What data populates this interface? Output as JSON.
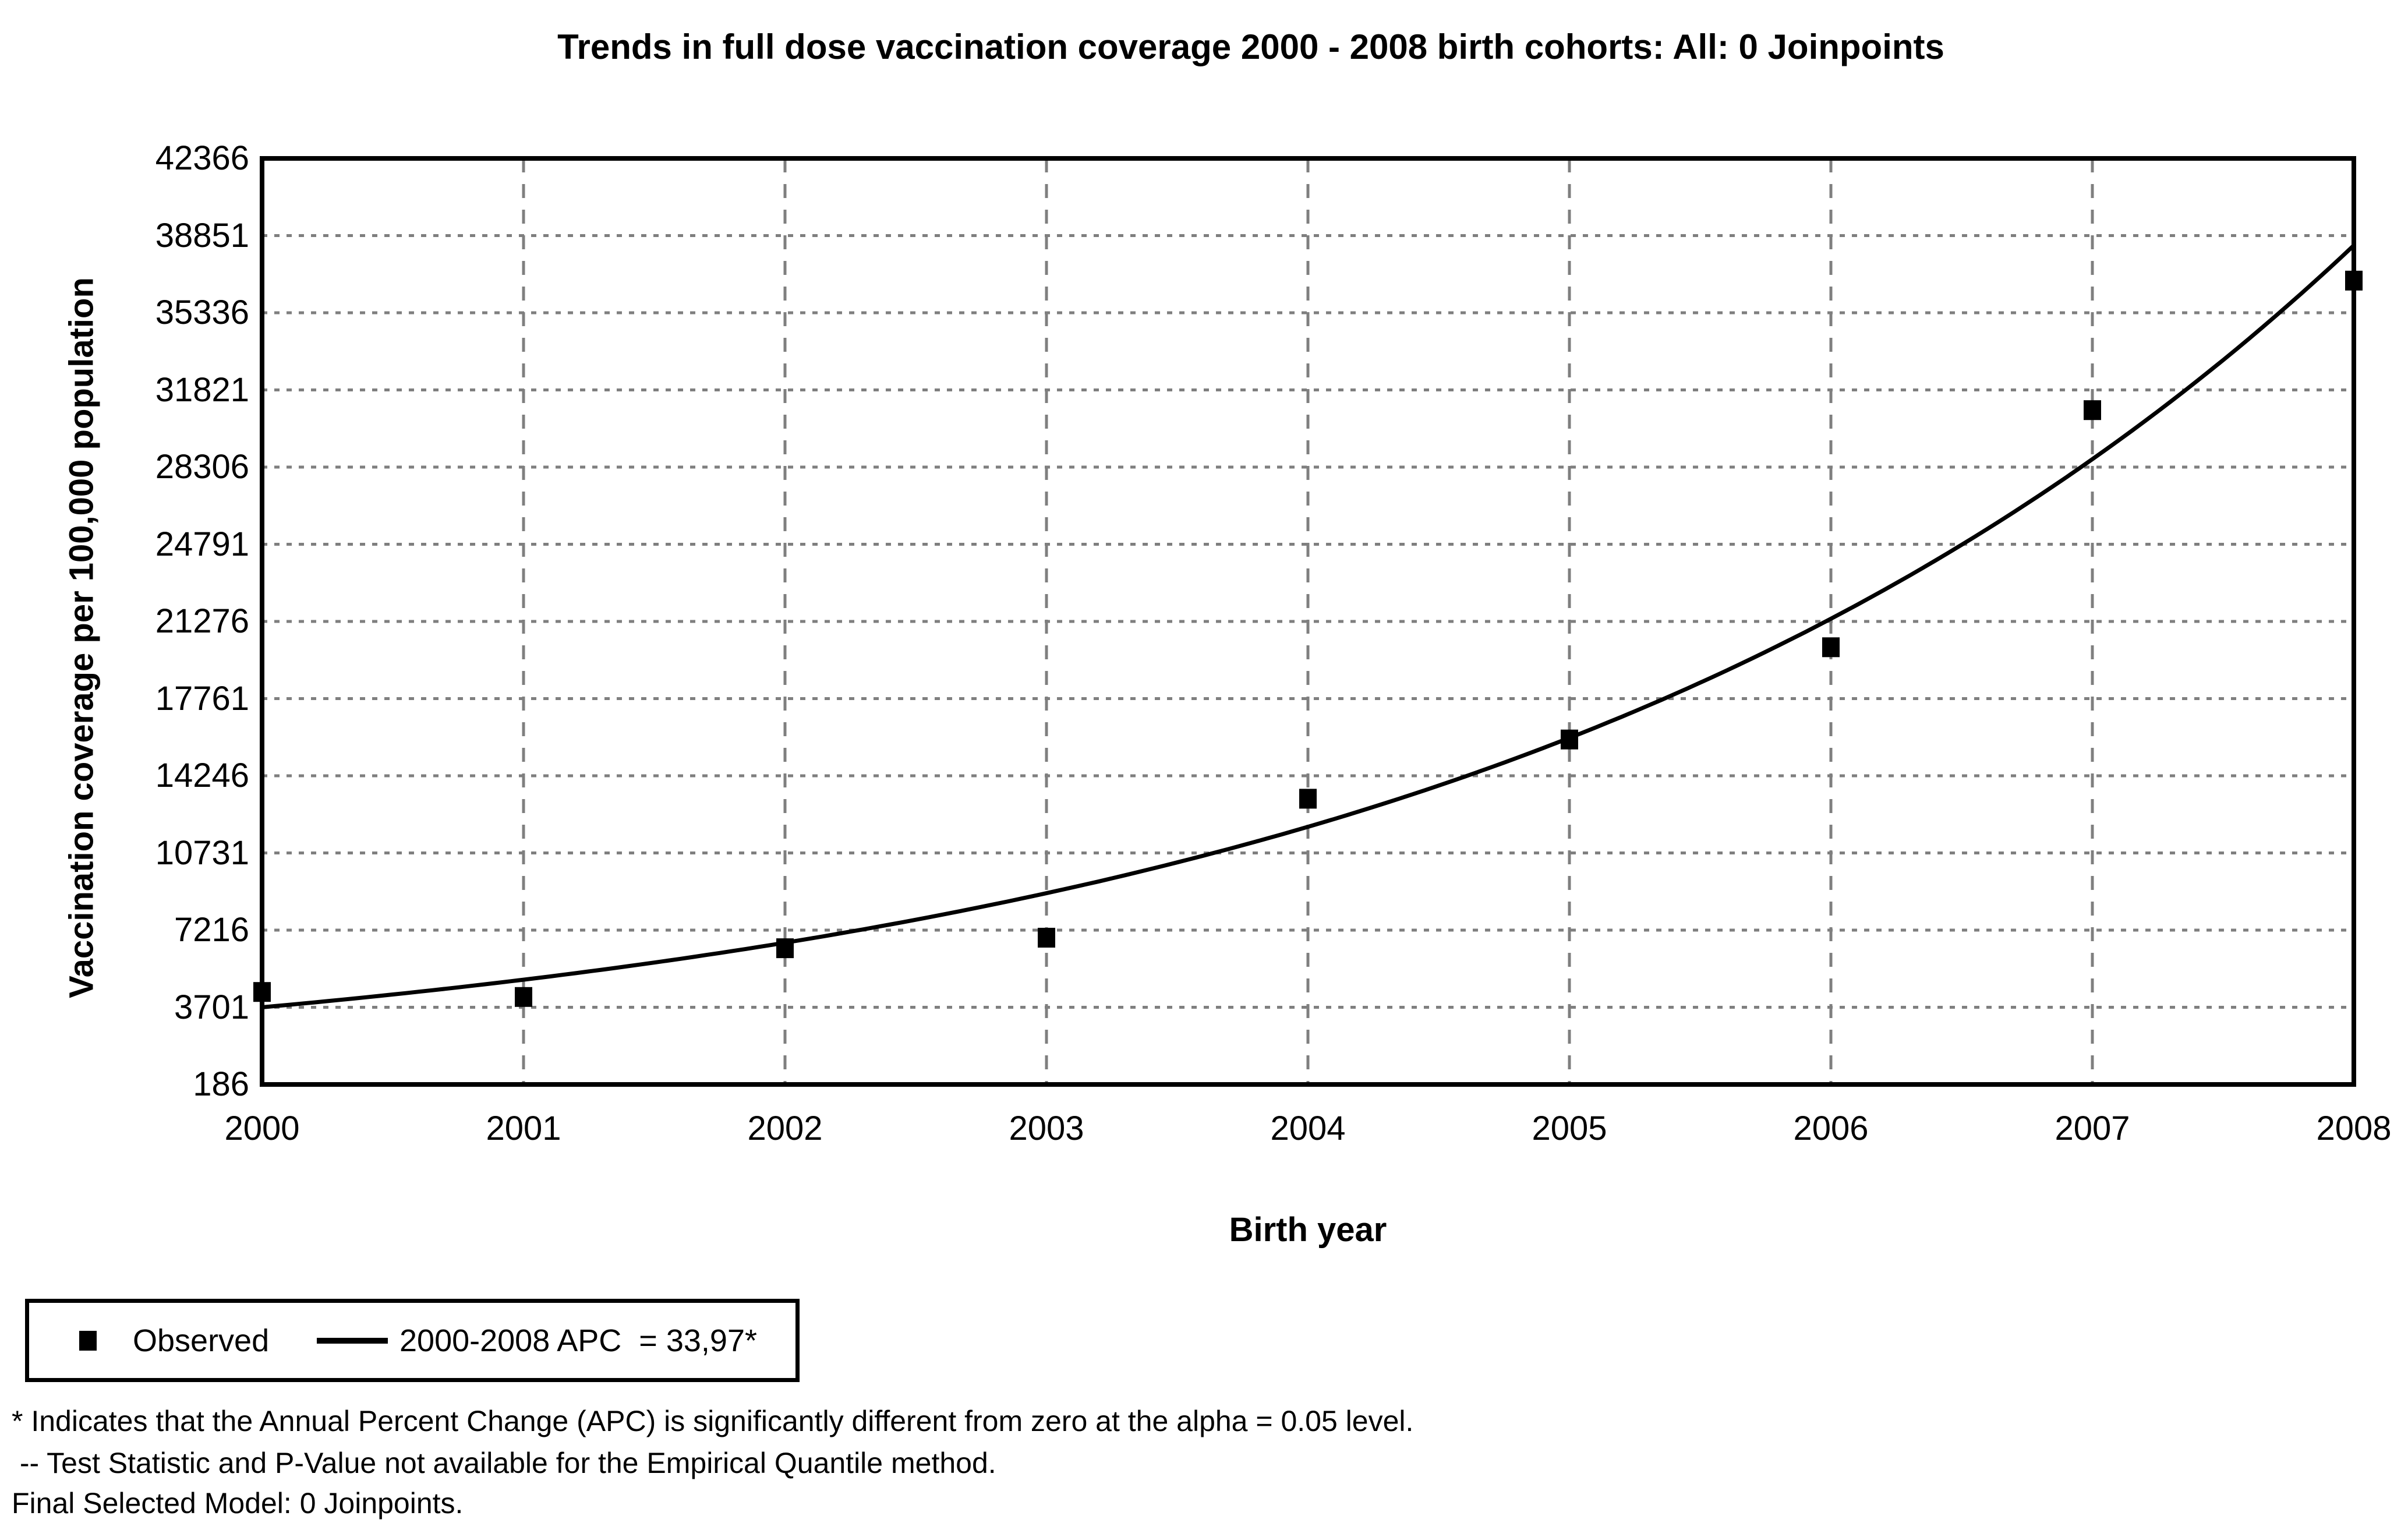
{
  "chart_data": {
    "type": "line",
    "title": "Trends in full dose vaccination coverage 2000 - 2008 birth cohorts: All: 0 Joinpoints",
    "xlabel": "Birth year",
    "ylabel": "Vaccination coverage per 100,000 population",
    "xlim": [
      2000,
      2008
    ],
    "ylim": [
      186,
      42366
    ],
    "x_ticks": [
      2000,
      2001,
      2002,
      2003,
      2004,
      2005,
      2006,
      2007,
      2008
    ],
    "y_ticks": [
      186,
      3701,
      7216,
      10731,
      14246,
      17761,
      21276,
      24791,
      28306,
      31821,
      35336,
      38851,
      42366
    ],
    "grid": {
      "horizontal_style": "dotted",
      "vertical_style": "dashed",
      "color": "#7f7f7f",
      "shown": true
    },
    "legend_position": "bottom-left",
    "series": [
      {
        "name": "Observed",
        "type": "scatter",
        "marker": "filled-square",
        "color": "#000000",
        "x": [
          2000,
          2001,
          2002,
          2003,
          2004,
          2005,
          2006,
          2007,
          2008
        ],
        "y": [
          4400,
          4170,
          6390,
          6870,
          13200,
          15900,
          20100,
          30900,
          36800
        ]
      },
      {
        "name": "2000-2008 APC  = 33,97*",
        "type": "regression-line",
        "model": "exponential",
        "color": "#000000",
        "apc_percent": 33.97,
        "start_year": 2000,
        "end_year": 2008,
        "start_value": 3701,
        "end_value": 38400
      }
    ]
  },
  "footnotes": [
    "* Indicates that the Annual Percent Change (APC) is significantly different from zero at the alpha = 0.05 level.",
    " -- Test Statistic and P-Value not available for the Empirical Quantile method.",
    "Final Selected Model: 0 Joinpoints."
  ],
  "colors": {
    "text": "#000000",
    "axis": "#000000",
    "grid": "#7f7f7f",
    "background": "#ffffff"
  }
}
